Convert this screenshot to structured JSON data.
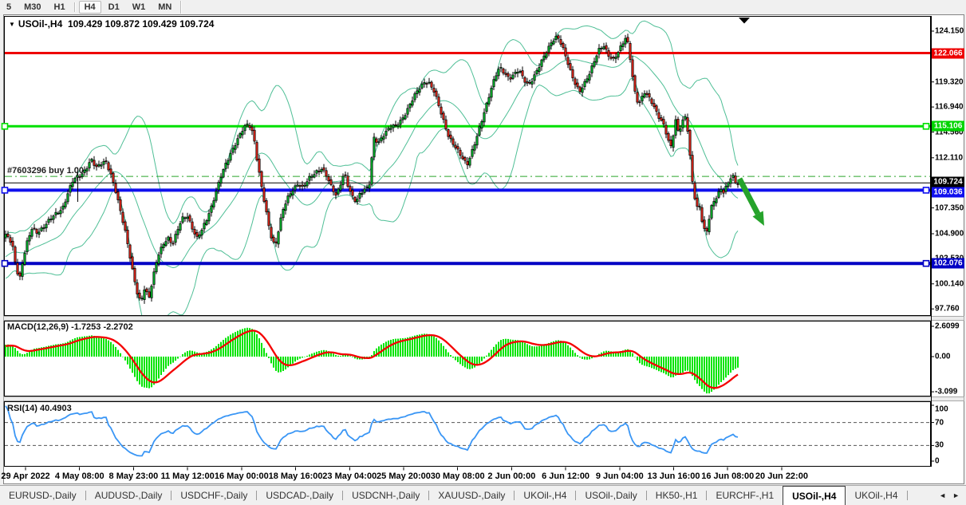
{
  "toolbar": {
    "timeframes": [
      {
        "label": "5",
        "active": false
      },
      {
        "label": "M30",
        "active": false
      },
      {
        "label": "H1",
        "active": false
      },
      {
        "label": "H4",
        "active": true
      },
      {
        "label": "D1",
        "active": false
      },
      {
        "label": "W1",
        "active": false
      },
      {
        "label": "MN",
        "active": false
      }
    ]
  },
  "chart": {
    "symbol": "USOil-,H4",
    "ohlc": "109.429 109.872 109.429 109.724",
    "macd_label": "MACD(12,26,9) -1.7253 -2.2702",
    "rsi_label": "RSI(14) 40.4903",
    "order_label": "#7603296 buy 1.00"
  },
  "chart_data": {
    "type": "candlestick",
    "symbol": "USOil-,H4",
    "timeframe": "H4",
    "ohlc_display": {
      "open": 109.429,
      "high": 109.872,
      "low": 109.429,
      "close": 109.724
    },
    "ylim": [
      97.0,
      125.6
    ],
    "price_scale_ticks": [
      124.15,
      121.77,
      119.32,
      116.94,
      114.56,
      112.11,
      107.35,
      104.9,
      102.53,
      100.14,
      97.76
    ],
    "price_labels": [
      {
        "value": "122.066",
        "price": 122.066,
        "color": "#ee0000"
      },
      {
        "value": "115.106",
        "price": 115.106,
        "color": "#00d400"
      },
      {
        "value": "109.724",
        "price": 109.724,
        "color": "#000000"
      },
      {
        "value": "109.036",
        "price": 109.036,
        "color": "#1010ee"
      },
      {
        "value": "102.076",
        "price": 102.076,
        "color": "#0000c4"
      }
    ],
    "horizontal_lines": [
      {
        "price": 122.066,
        "color": "#ee0000",
        "width": 3,
        "style": "solid",
        "handles": false
      },
      {
        "price": 115.106,
        "color": "#00e000",
        "width": 3,
        "style": "solid",
        "handles": true
      },
      {
        "price": 110.35,
        "color": "#2aa52a",
        "width": 1,
        "style": "dashdot",
        "handles": false
      },
      {
        "price": 109.724,
        "color": "#000000",
        "width": 1,
        "style": "solid",
        "handles": false
      },
      {
        "price": 109.036,
        "color": "#1010ee",
        "width": 4,
        "style": "solid",
        "handles": true
      },
      {
        "price": 102.076,
        "color": "#0000c4",
        "width": 4,
        "style": "solid",
        "handles": true
      }
    ],
    "order_line": {
      "id": "#7603296",
      "side": "buy",
      "lots": "1.00",
      "price": 110.35
    },
    "bollinger": {
      "period": 20,
      "deviation": 2,
      "color": "#4fbf96"
    },
    "macd": {
      "params": "12,26,9",
      "main": -1.7253,
      "signal": -2.2702,
      "scale_ticks": [
        "2.6099",
        "0.00",
        "-3.099"
      ],
      "hist_color": "#00e400",
      "signal_color": "#f40000"
    },
    "rsi": {
      "period": 14,
      "value": 40.4903,
      "levels": [
        70,
        30
      ],
      "scale_ticks": [
        "100",
        "70",
        "30",
        "0"
      ],
      "color": "#3a96f5"
    },
    "time_labels": [
      "29 Apr 2022",
      "4 May 08:00",
      "8 May 23:00",
      "11 May 12:00",
      "16 May 00:00",
      "18 May 16:00",
      "23 May 04:00",
      "25 May 20:00",
      "30 May 08:00",
      "2 Jun 00:00",
      "6 Jun 12:00",
      "9 Jun 04:00",
      "13 Jun 16:00",
      "16 Jun 08:00",
      "20 Jun 22:00"
    ],
    "candle_colors": {
      "bull": "#00b42a",
      "bear": "#df2417",
      "outline": "#000000"
    },
    "arrow_annotation": {
      "color": "#26a32b",
      "from_price": 110.4,
      "to_price": 106.0
    },
    "price_path": [
      [
        6,
        104.5
      ],
      [
        10,
        104.8
      ],
      [
        14,
        104.2
      ],
      [
        18,
        103.4
      ],
      [
        22,
        101.6
      ],
      [
        26,
        100.6
      ],
      [
        30,
        102.4
      ],
      [
        36,
        104.2
      ],
      [
        42,
        105.4
      ],
      [
        48,
        105.0
      ],
      [
        56,
        105.6
      ],
      [
        64,
        106.2
      ],
      [
        72,
        106.8
      ],
      [
        80,
        107.4
      ],
      [
        86,
        108.6
      ],
      [
        92,
        109.8
      ],
      [
        98,
        110.3
      ],
      [
        104,
        110.6
      ],
      [
        110,
        111.2
      ],
      [
        116,
        111.9
      ],
      [
        122,
        111.1
      ],
      [
        128,
        111.6
      ],
      [
        134,
        111.9
      ],
      [
        140,
        110.6
      ],
      [
        146,
        109.0
      ],
      [
        152,
        107.2
      ],
      [
        158,
        105.4
      ],
      [
        163,
        103.4
      ],
      [
        168,
        101.2
      ],
      [
        173,
        99.3
      ],
      [
        178,
        98.3
      ],
      [
        183,
        99.9
      ],
      [
        188,
        98.8
      ],
      [
        193,
        100.6
      ],
      [
        199,
        102.6
      ],
      [
        206,
        103.9
      ],
      [
        212,
        104.6
      ],
      [
        218,
        103.9
      ],
      [
        224,
        105.2
      ],
      [
        230,
        106.3
      ],
      [
        236,
        106.7
      ],
      [
        242,
        105.6
      ],
      [
        248,
        104.4
      ],
      [
        254,
        105.1
      ],
      [
        260,
        106.2
      ],
      [
        266,
        107.4
      ],
      [
        272,
        108.8
      ],
      [
        278,
        110.2
      ],
      [
        284,
        111.4
      ],
      [
        290,
        112.5
      ],
      [
        296,
        113.4
      ],
      [
        302,
        114.2
      ],
      [
        307,
        114.9
      ],
      [
        312,
        115.3
      ],
      [
        316,
        115.1
      ],
      [
        320,
        114.0
      ],
      [
        324,
        111.8
      ],
      [
        328,
        109.9
      ],
      [
        333,
        107.8
      ],
      [
        338,
        105.8
      ],
      [
        343,
        104.2
      ],
      [
        347,
        103.9
      ],
      [
        352,
        105.8
      ],
      [
        357,
        107.3
      ],
      [
        363,
        108.4
      ],
      [
        369,
        109.2
      ],
      [
        375,
        109.7
      ],
      [
        381,
        109.2
      ],
      [
        387,
        109.9
      ],
      [
        393,
        110.5
      ],
      [
        399,
        110.9
      ],
      [
        405,
        111.1
      ],
      [
        411,
        110.3
      ],
      [
        417,
        109.3
      ],
      [
        423,
        108.6
      ],
      [
        428,
        109.6
      ],
      [
        433,
        110.7
      ],
      [
        438,
        109.3
      ],
      [
        443,
        108.4
      ],
      [
        448,
        108.0
      ],
      [
        453,
        108.8
      ],
      [
        458,
        109.1
      ],
      [
        464,
        109.2
      ],
      [
        470,
        114.0
      ],
      [
        476,
        113.6
      ],
      [
        482,
        114.3
      ],
      [
        490,
        114.9
      ],
      [
        498,
        115.2
      ],
      [
        506,
        115.9
      ],
      [
        512,
        116.6
      ],
      [
        518,
        117.5
      ],
      [
        526,
        118.7
      ],
      [
        534,
        119.4
      ],
      [
        540,
        119.1
      ],
      [
        546,
        118.3
      ],
      [
        552,
        117.0
      ],
      [
        558,
        115.6
      ],
      [
        564,
        114.1
      ],
      [
        570,
        113.3
      ],
      [
        576,
        112.7
      ],
      [
        582,
        112.1
      ],
      [
        587,
        111.5
      ],
      [
        592,
        112.4
      ],
      [
        598,
        113.7
      ],
      [
        604,
        115.3
      ],
      [
        610,
        116.9
      ],
      [
        616,
        118.4
      ],
      [
        622,
        119.7
      ],
      [
        628,
        120.7
      ],
      [
        634,
        120.2
      ],
      [
        640,
        119.7
      ],
      [
        646,
        120.0
      ],
      [
        652,
        120.4
      ],
      [
        658,
        119.6
      ],
      [
        664,
        119.1
      ],
      [
        670,
        119.7
      ],
      [
        676,
        120.5
      ],
      [
        682,
        121.5
      ],
      [
        688,
        122.5
      ],
      [
        694,
        123.3
      ],
      [
        700,
        123.6
      ],
      [
        706,
        122.7
      ],
      [
        712,
        121.5
      ],
      [
        718,
        120.1
      ],
      [
        724,
        118.9
      ],
      [
        728,
        118.3
      ],
      [
        734,
        119.1
      ],
      [
        740,
        120.1
      ],
      [
        746,
        121.3
      ],
      [
        752,
        122.3
      ],
      [
        758,
        122.7
      ],
      [
        764,
        121.9
      ],
      [
        770,
        121.5
      ],
      [
        776,
        122.1
      ],
      [
        782,
        122.9
      ],
      [
        787,
        123.6
      ],
      [
        791,
        121.9
      ],
      [
        795,
        119.6
      ],
      [
        799,
        117.7
      ],
      [
        804,
        117.3
      ],
      [
        809,
        118.3
      ],
      [
        814,
        117.9
      ],
      [
        819,
        117.4
      ],
      [
        824,
        116.6
      ],
      [
        829,
        115.8
      ],
      [
        834,
        115.1
      ],
      [
        838,
        114.0
      ],
      [
        842,
        113.0
      ],
      [
        845,
        114.1
      ],
      [
        848,
        115.9
      ],
      [
        852,
        114.6
      ],
      [
        856,
        115.3
      ],
      [
        860,
        116.1
      ],
      [
        863,
        115.1
      ],
      [
        866,
        112.6
      ],
      [
        869,
        110.1
      ],
      [
        872,
        108.6
      ],
      [
        875,
        107.4
      ],
      [
        878,
        107.8
      ],
      [
        881,
        106.4
      ],
      [
        884,
        105.3
      ],
      [
        887,
        104.9
      ],
      [
        890,
        106.1
      ],
      [
        893,
        107.3
      ],
      [
        897,
        108.1
      ],
      [
        901,
        108.6
      ],
      [
        905,
        109.3
      ],
      [
        909,
        108.8
      ],
      [
        913,
        109.5
      ],
      [
        917,
        110.1
      ],
      [
        921,
        110.3
      ],
      [
        924,
        109.72
      ]
    ]
  },
  "tabs": {
    "items": [
      {
        "label": "EURUSD-,Daily",
        "active": false
      },
      {
        "label": "AUDUSD-,Daily",
        "active": false
      },
      {
        "label": "USDCHF-,Daily",
        "active": false
      },
      {
        "label": "USDCAD-,Daily",
        "active": false
      },
      {
        "label": "USDCNH-,Daily",
        "active": false
      },
      {
        "label": "XAUUSD-,Daily",
        "active": false
      },
      {
        "label": "UKOil-,H4",
        "active": false
      },
      {
        "label": "USOil-,Daily",
        "active": false
      },
      {
        "label": "HK50-,H1",
        "active": false
      },
      {
        "label": "EURCHF-,H1",
        "active": false
      },
      {
        "label": "USOil-,H4",
        "active": true
      },
      {
        "label": "UKOil-,H4",
        "active": false
      }
    ],
    "scroll_left": "◄",
    "scroll_right": "►"
  }
}
